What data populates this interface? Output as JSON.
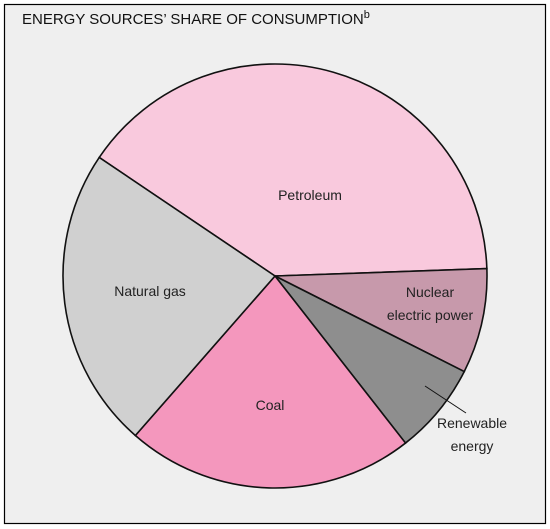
{
  "chart_data": {
    "type": "pie",
    "title": "ENERGY SOURCES’ SHARE OF CONSUMPTION",
    "title_note": "b",
    "categories": [
      "Petroleum",
      "Nuclear electric power",
      "Renewable energy",
      "Coal",
      "Natural gas"
    ],
    "values": [
      40,
      8,
      7,
      22,
      23
    ],
    "colors": [
      "#f9c9dd",
      "#c799ab",
      "#8e8e8e",
      "#f497bd",
      "#d0d0d0"
    ]
  }
}
